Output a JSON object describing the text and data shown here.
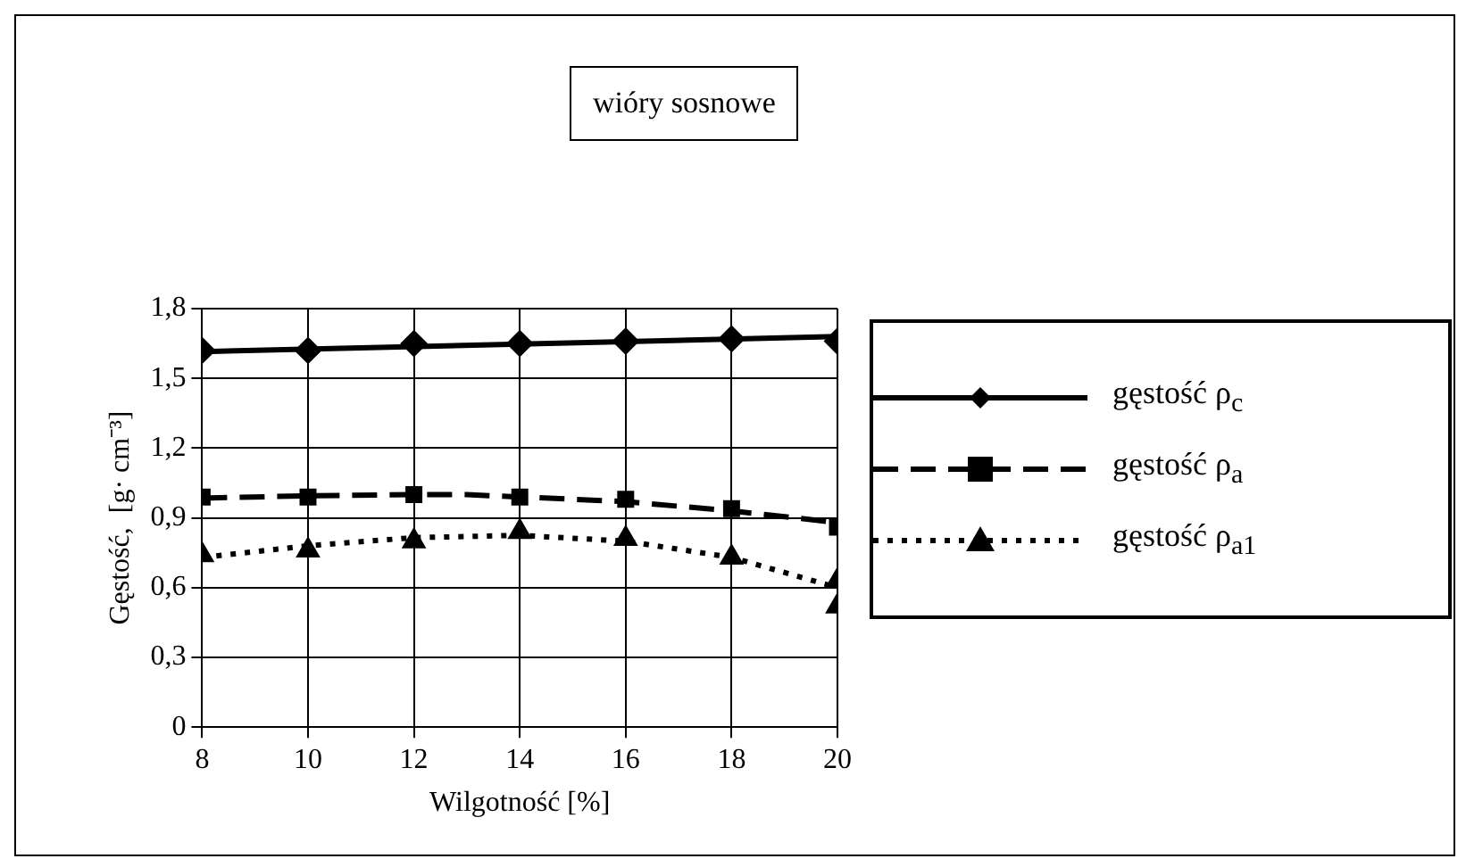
{
  "chart_data": {
    "type": "scatter",
    "title": "wióry sosnowe",
    "xlabel": "Wilgotność [%]",
    "ylabel": "Gęstość,  [g· cm⁻³]",
    "xlim": [
      8,
      20
    ],
    "xticks": [
      8,
      10,
      12,
      14,
      16,
      18,
      20
    ],
    "ylim": [
      0,
      1.8
    ],
    "yticks": [
      0,
      {
        "value": 0.3,
        "label": "0,3"
      },
      {
        "value": 0.6,
        "label": "0,6"
      },
      {
        "value": 0.9,
        "label": "0,9"
      },
      {
        "value": 1.2,
        "label": "1,2"
      },
      {
        "value": 1.5,
        "label": "1,5"
      },
      {
        "value": 1.8,
        "label": "1,8"
      }
    ],
    "grid": true,
    "legend": "right",
    "series": [
      {
        "name": "gęstość  ρ$_{c}$",
        "type": "scatter",
        "marker": "diamond",
        "color": "#000000",
        "x": [
          8,
          10,
          12,
          14,
          16,
          18,
          20
        ],
        "values": [
          1.62,
          1.62,
          1.65,
          1.65,
          1.66,
          1.67,
          1.66
        ]
      },
      {
        "type": "line",
        "line_style": "solid",
        "marker": "none",
        "color": "#000000",
        "x": [
          8,
          20
        ],
        "values": [
          1.615,
          1.68
        ]
      },
      {
        "name": "gęstość  ρ$_{a}$",
        "type": "scatter",
        "marker": "square",
        "color": "#000000",
        "x": [
          8,
          10,
          12,
          14,
          16,
          18,
          20
        ],
        "values": [
          0.99,
          0.99,
          1.0,
          0.99,
          0.98,
          0.94,
          0.86
        ]
      },
      {
        "type": "line",
        "line_style": "dashed",
        "marker": "none",
        "color": "#000000",
        "x": [
          8,
          10,
          12,
          13,
          14,
          16,
          18,
          20
        ],
        "values": [
          0.985,
          0.995,
          1.0,
          1.0,
          0.99,
          0.97,
          0.93,
          0.88
        ]
      },
      {
        "name": "gęstość  ρ$_{a1}$",
        "type": "scatter",
        "marker": "triangle",
        "color": "#000000",
        "x": [
          8,
          10,
          12,
          14,
          16,
          18,
          20,
          20
        ],
        "values": [
          0.74,
          0.76,
          0.8,
          0.84,
          0.81,
          0.73,
          0.63,
          0.52
        ]
      },
      {
        "type": "line",
        "line_style": "dotted",
        "marker": "none",
        "color": "#000000",
        "x": [
          8,
          10,
          12,
          14,
          16,
          18,
          20
        ],
        "values": [
          0.73,
          0.78,
          0.815,
          0.825,
          0.8,
          0.73,
          0.6
        ]
      }
    ]
  }
}
